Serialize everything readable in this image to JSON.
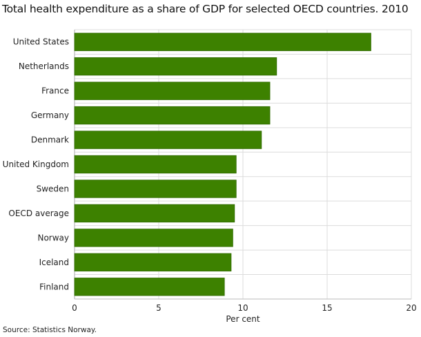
{
  "chart_data": {
    "type": "bar",
    "orientation": "horizontal",
    "title": "Total health expenditure as a share of GDP for selected OECD countries. 2010",
    "xlabel": "Per cent",
    "ylabel": "",
    "xlim": [
      0,
      20
    ],
    "xticks": [
      "0",
      "5",
      "10",
      "15",
      "20"
    ],
    "grid": true,
    "categories": [
      "United States",
      "Netherlands",
      "France",
      "Germany",
      "Denmark",
      "United Kingdom",
      "Sweden",
      "OECD average",
      "Norway",
      "Iceland",
      "Finland"
    ],
    "values": [
      17.6,
      12.0,
      11.6,
      11.6,
      11.1,
      9.6,
      9.6,
      9.5,
      9.4,
      9.3,
      8.9
    ],
    "bar_color": "#3d8100",
    "source": "Source: Statistics Norway."
  }
}
